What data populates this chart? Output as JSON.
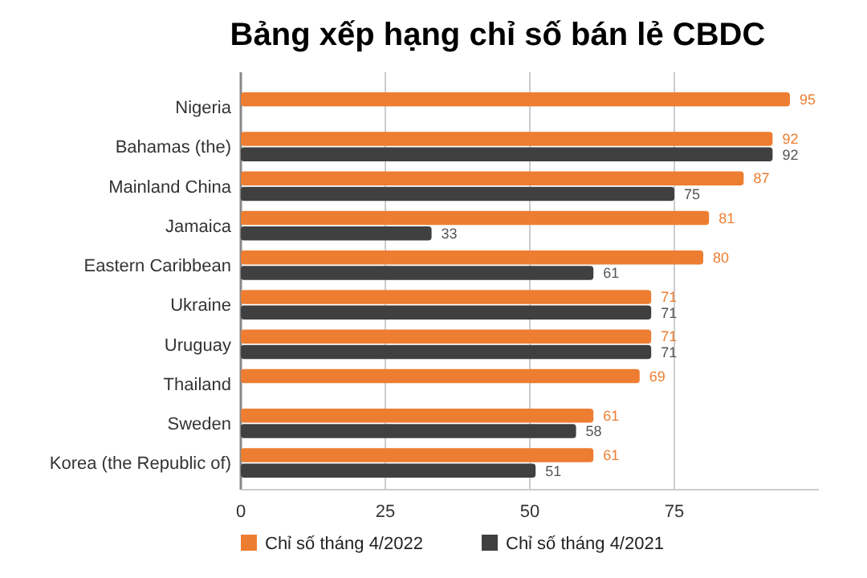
{
  "chart_data": {
    "type": "bar",
    "orientation": "horizontal",
    "title": "Bảng xếp hạng chỉ số bán lẻ CBDC",
    "categories": [
      "Nigeria",
      "Bahamas (the)",
      "Mainland China",
      "Jamaica",
      "Eastern Caribbean",
      "Ukraine",
      "Uruguay",
      "Thailand",
      "Sweden",
      "Korea (the Republic of)"
    ],
    "series": [
      {
        "name": "Chỉ số tháng 4/2022",
        "color": "#ed7d31",
        "values": [
          95,
          92,
          87,
          81,
          80,
          71,
          71,
          69,
          61,
          61
        ]
      },
      {
        "name": "Chỉ số tháng 4/2021",
        "color": "#404040",
        "values": [
          null,
          92,
          75,
          33,
          61,
          71,
          71,
          null,
          58,
          51
        ]
      }
    ],
    "xlim": [
      0,
      100
    ],
    "xticks": [
      0,
      25,
      50,
      75
    ],
    "grid": "x",
    "legend": "bottom",
    "data_labels": true
  }
}
